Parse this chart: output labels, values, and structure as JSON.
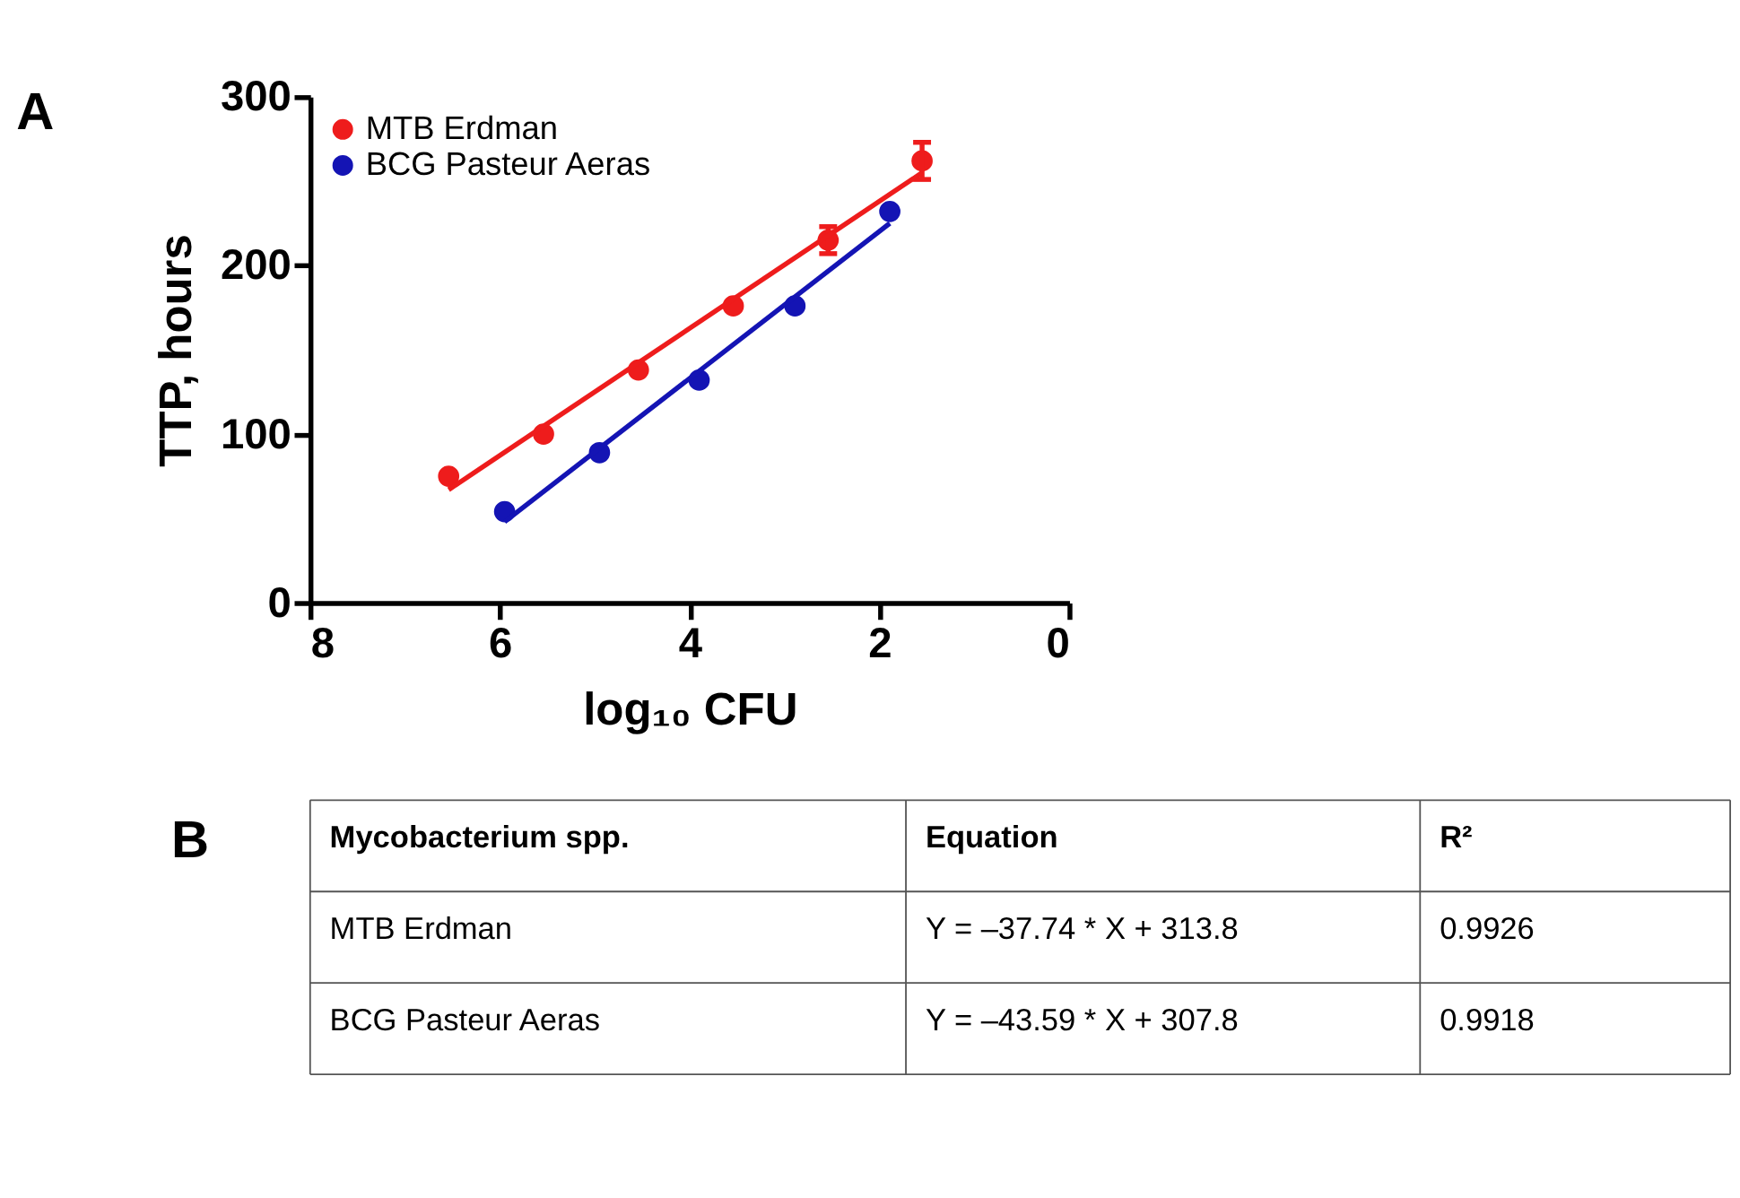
{
  "chart_data": [
    {
      "type": "scatter",
      "annotations": [
        "A"
      ],
      "xlabel": "log₁₀ CFU",
      "ylabel": "TTP, hours",
      "xlim": [
        8,
        0
      ],
      "xticks": [
        8,
        6,
        4,
        2,
        0
      ],
      "ylim": [
        0,
        300
      ],
      "yticks": [
        0,
        100,
        200,
        300
      ],
      "grid": false,
      "legend": "top left",
      "series": [
        {
          "name": "MTB Erdman",
          "color": "#ee1c1c",
          "marker": "circle",
          "x": [
            6.54,
            5.54,
            4.54,
            3.54,
            2.54,
            1.55
          ],
          "values": [
            75,
            100,
            138,
            176,
            215,
            262
          ],
          "errors": [
            null,
            null,
            null,
            null,
            8,
            11
          ]
        },
        {
          "name": "BCG Pasteur Aeras",
          "color": "#1414b4",
          "marker": "circle",
          "x": [
            5.95,
            4.95,
            3.9,
            2.89,
            1.89
          ],
          "values": [
            54,
            89,
            132,
            176,
            232
          ]
        },
        {
          "type": "line",
          "marker": "none",
          "color": "#ee1c1c",
          "x": [
            6.54,
            1.55
          ],
          "values": [
            67,
            255
          ]
        },
        {
          "type": "line",
          "marker": "none",
          "color": "#1414b4",
          "x": [
            5.95,
            1.89
          ],
          "values": [
            48,
            225
          ]
        }
      ]
    },
    {
      "type": "other",
      "annotations": [
        "B"
      ],
      "categories": [
        "Mycobacterium spp.",
        "Equation",
        "R²"
      ],
      "y_categories": [
        "MTB Erdman",
        "BCG Pasteur Aeras"
      ],
      "cell_labels": [
        [
          "Y = –37.74 * X + 313.8",
          "0.9926"
        ],
        [
          "Y = –43.59 * X + 307.8",
          "0.9918"
        ]
      ]
    }
  ]
}
